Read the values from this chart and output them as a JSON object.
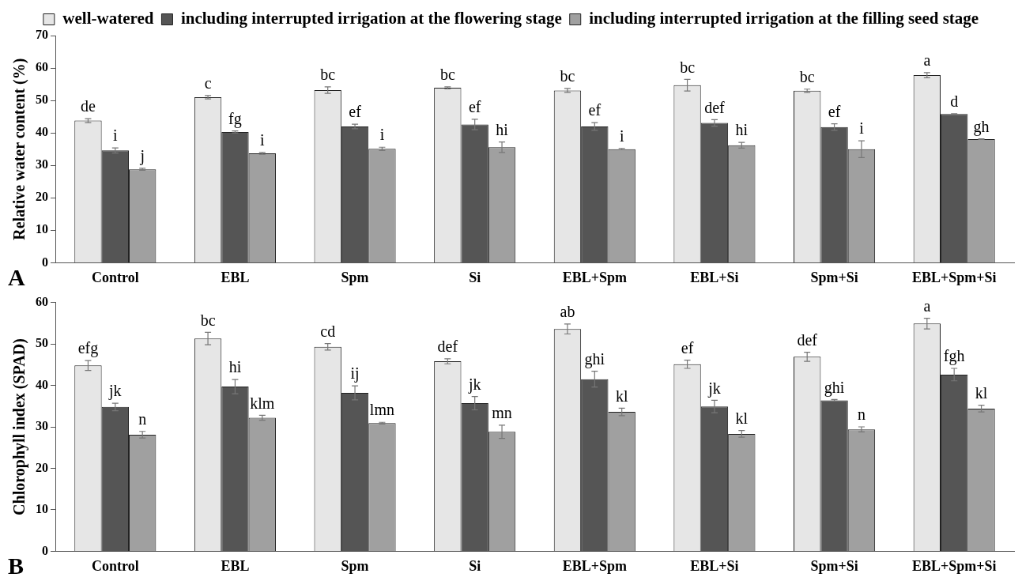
{
  "chart_data": [
    {
      "type": "bar",
      "ylabel": "Relative water content (%)",
      "categories": [
        "Control",
        "EBL",
        "Spm",
        "Si",
        "EBL+Spm",
        "EBL+Si",
        "Spm+Si",
        "EBL+Spm+Si"
      ],
      "ylim": [
        0,
        70
      ],
      "yticks": [
        0,
        10,
        20,
        30,
        40,
        50,
        60,
        70
      ],
      "grid": false,
      "legend": "top",
      "annotations": [
        "A"
      ],
      "series": [
        {
          "name": "well-watered",
          "color": "#e6e6e6",
          "values": [
            43.8,
            51.0,
            53.2,
            53.9,
            53.1,
            54.7,
            53.0,
            57.8
          ],
          "errors": [
            0.6,
            0.5,
            1.0,
            0.3,
            0.6,
            1.8,
            0.5,
            0.8
          ],
          "value_labels": [
            "de",
            "c",
            "bc",
            "bc",
            "bc",
            "bc",
            "bc",
            "a"
          ]
        },
        {
          "name": "including interrupted irrigation at the flowering stage",
          "color": "#555555",
          "values": [
            34.6,
            40.3,
            42.0,
            42.6,
            42.0,
            43.1,
            41.8,
            45.8
          ],
          "errors": [
            0.8,
            0.3,
            0.7,
            1.6,
            1.2,
            1.0,
            1.0,
            0.1
          ],
          "value_labels": [
            "i",
            "fg",
            "ef",
            "ef",
            "ef",
            "def",
            "ef",
            "d"
          ]
        },
        {
          "name": "including interrupted irrigation at the filling seed stage",
          "color": "#a0a0a0",
          "values": [
            28.8,
            33.7,
            35.1,
            35.6,
            35.0,
            36.2,
            35.0,
            38.1
          ],
          "errors": [
            0.3,
            0.3,
            0.5,
            1.6,
            0.2,
            0.9,
            2.6,
            0.1
          ],
          "value_labels": [
            "j",
            "i",
            "i",
            "hi",
            "i",
            "hi",
            "i",
            "gh"
          ]
        }
      ]
    },
    {
      "type": "bar",
      "ylabel": "Chlorophyll index (SPAD)",
      "categories": [
        "Control",
        "EBL",
        "Spm",
        "Si",
        "EBL+Spm",
        "EBL+Si",
        "Spm+Si",
        "EBL+Spm+Si"
      ],
      "ylim": [
        0,
        60
      ],
      "yticks": [
        0,
        10,
        20,
        30,
        40,
        50,
        60
      ],
      "grid": false,
      "annotations": [
        "B"
      ],
      "series": [
        {
          "color": "#e6e6e6",
          "values": [
            44.8,
            51.3,
            49.3,
            45.8,
            53.6,
            45.1,
            46.9,
            54.9
          ],
          "errors": [
            1.2,
            1.5,
            0.8,
            0.6,
            1.2,
            1.0,
            1.1,
            1.3
          ],
          "value_labels": [
            "efg",
            "bc",
            "cd",
            "def",
            "ab",
            "ef",
            "def",
            "a"
          ]
        },
        {
          "color": "#555555",
          "values": [
            34.8,
            39.7,
            38.2,
            35.7,
            41.5,
            34.9,
            36.4,
            42.6
          ],
          "errors": [
            0.9,
            1.7,
            1.7,
            1.6,
            1.9,
            1.5,
            0.2,
            1.5
          ],
          "value_labels": [
            "jk",
            "hi",
            "ij",
            "jk",
            "ghi",
            "jk",
            "ghi",
            "fgh"
          ]
        },
        {
          "color": "#a0a0a0",
          "values": [
            28.1,
            32.2,
            30.9,
            28.8,
            33.6,
            28.3,
            29.4,
            34.4
          ],
          "errors": [
            0.8,
            0.6,
            0.2,
            1.6,
            0.9,
            0.8,
            0.6,
            0.8
          ],
          "value_labels": [
            "n",
            "klm",
            "lmn",
            "mn",
            "kl",
            "kl",
            "n",
            "kl"
          ]
        }
      ]
    }
  ]
}
